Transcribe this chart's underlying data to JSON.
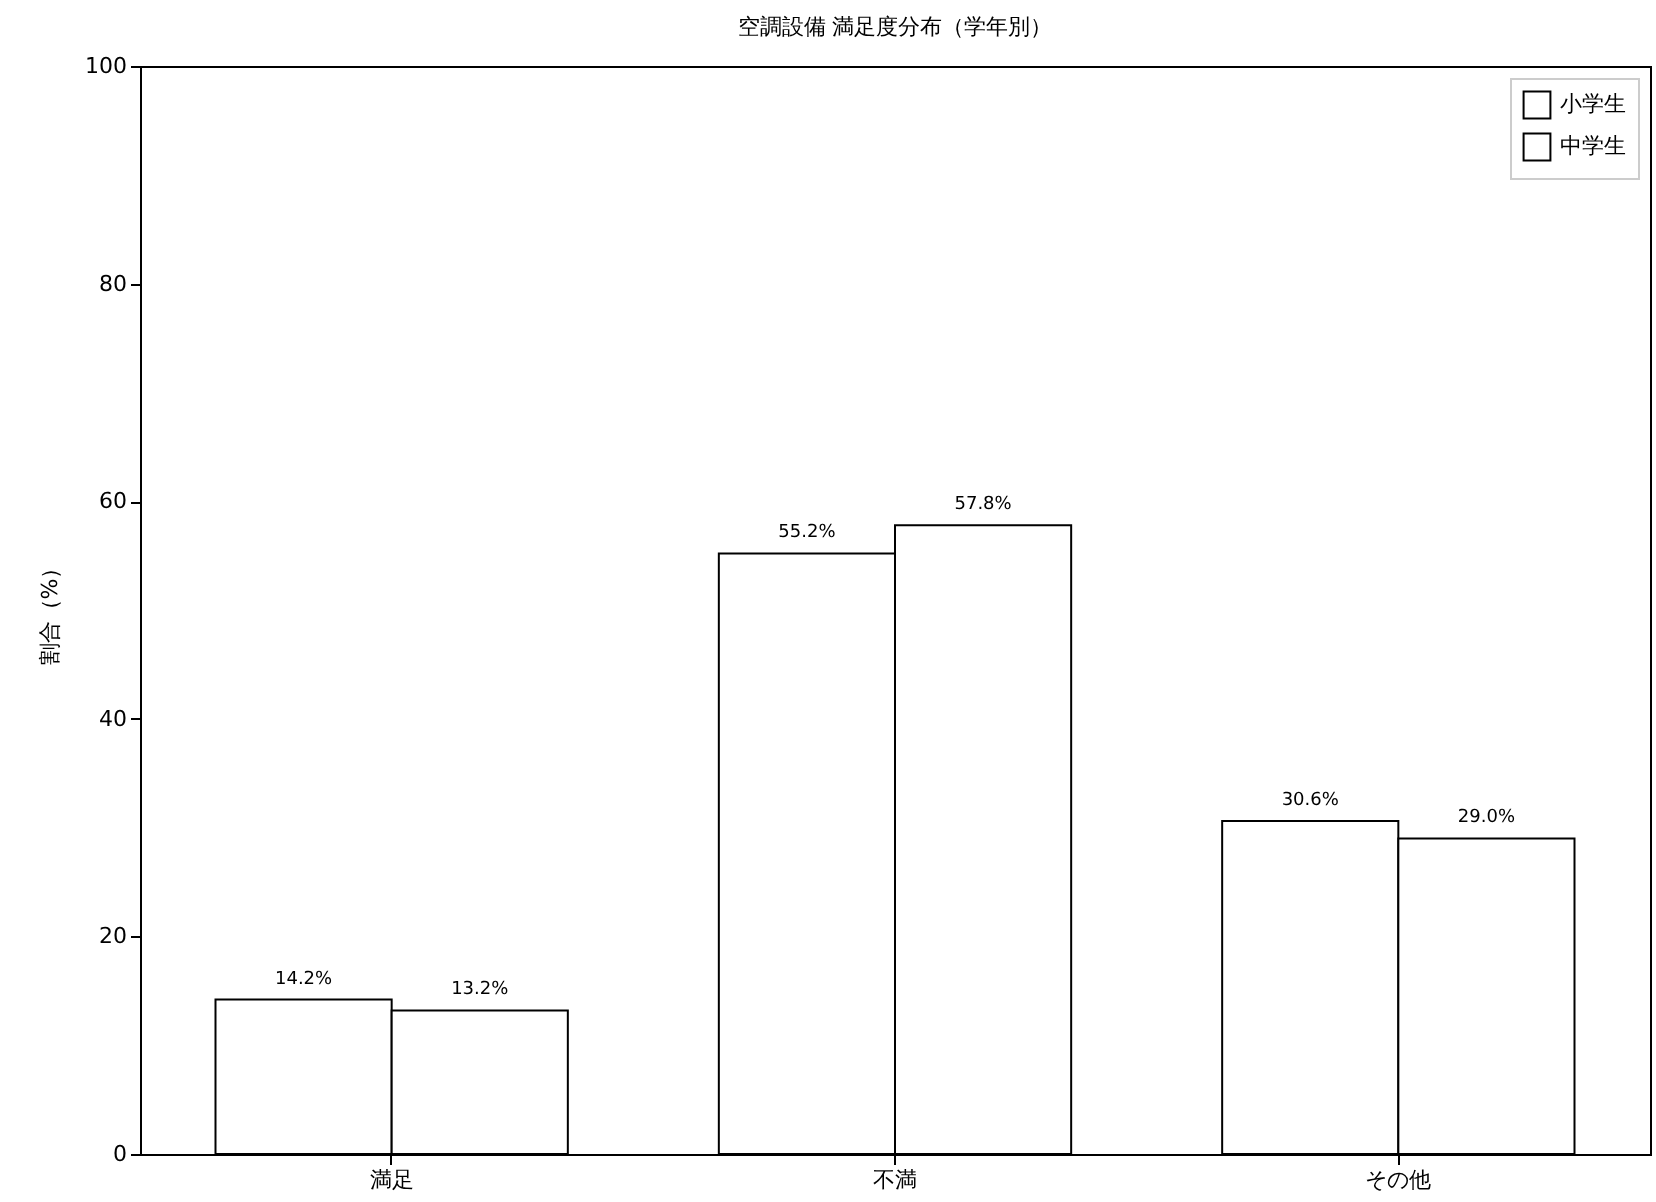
{
  "chart_data": {
    "type": "bar",
    "title": "空調設備 満足度分布（学年別）",
    "ylabel": "割合（%）",
    "categories": [
      "満足",
      "不満",
      "その他"
    ],
    "series": [
      {
        "name": "小学生",
        "color": "#ffffff",
        "values": [
          14.2,
          55.2,
          30.6
        ],
        "value_labels": [
          "14.2%",
          "55.2%",
          "30.6%"
        ]
      },
      {
        "name": "中学生",
        "color": "#ffffff",
        "values": [
          13.2,
          57.8,
          29.0
        ],
        "value_labels": [
          "13.2%",
          "57.8%",
          "29.0%"
        ]
      }
    ],
    "ylim": [
      0,
      100
    ],
    "yticks": [
      0,
      20,
      40,
      60,
      80,
      100
    ],
    "grid": false,
    "legend": "top right"
  }
}
